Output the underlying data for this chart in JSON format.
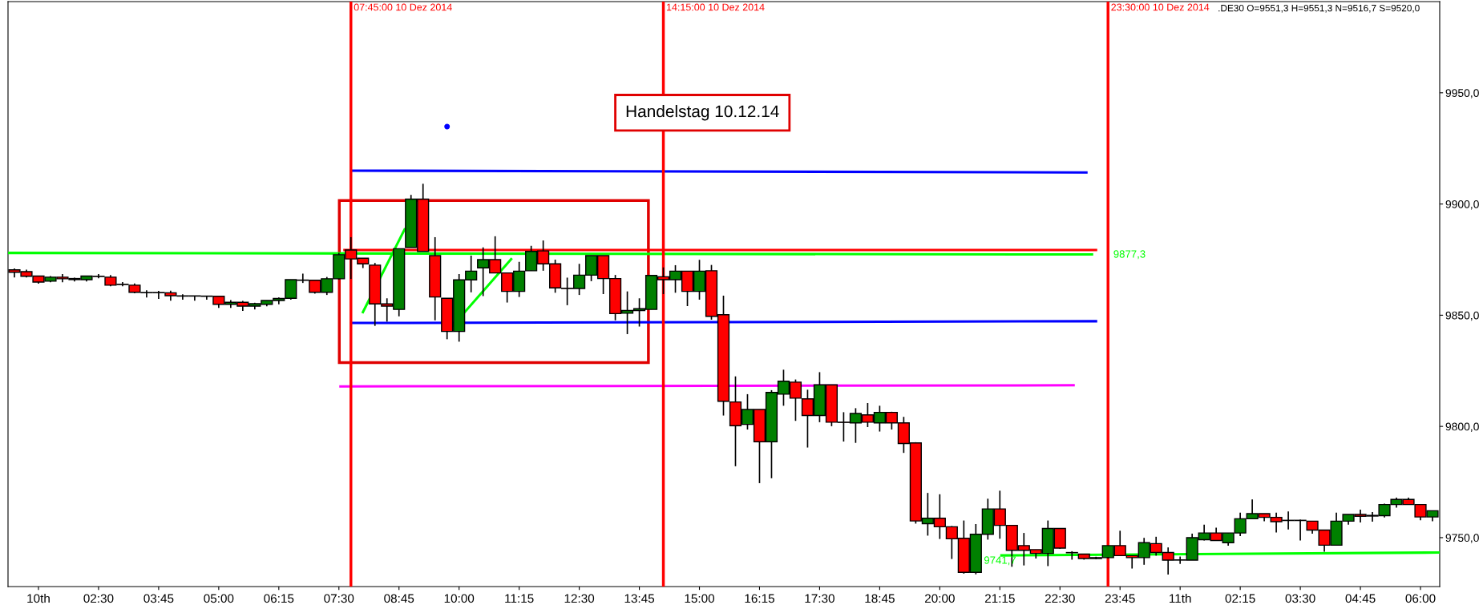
{
  "chart_data": {
    "type": "candlestick",
    "x": [
      "2014-12-10T00:45",
      "2014-12-10T01:00",
      "2014-12-10T01:15",
      "2014-12-10T01:30",
      "2014-12-10T01:45",
      "2014-12-10T02:00",
      "2014-12-10T02:15",
      "2014-12-10T02:30",
      "2014-12-10T02:45",
      "2014-12-10T03:00",
      "2014-12-10T03:15",
      "2014-12-10T03:30",
      "2014-12-10T03:45",
      "2014-12-10T04:00",
      "2014-12-10T04:15",
      "2014-12-10T04:30",
      "2014-12-10T04:45",
      "2014-12-10T05:00",
      "2014-12-10T05:15",
      "2014-12-10T05:30",
      "2014-12-10T05:45",
      "2014-12-10T06:00",
      "2014-12-10T06:15",
      "2014-12-10T06:30",
      "2014-12-10T06:45",
      "2014-12-10T07:00",
      "2014-12-10T07:15",
      "2014-12-10T07:30",
      "2014-12-10T07:45",
      "2014-12-10T08:00",
      "2014-12-10T08:15",
      "2014-12-10T08:30",
      "2014-12-10T08:45",
      "2014-12-10T09:00",
      "2014-12-10T09:15",
      "2014-12-10T09:30",
      "2014-12-10T09:45",
      "2014-12-10T10:00",
      "2014-12-10T10:15",
      "2014-12-10T10:30",
      "2014-12-10T10:45",
      "2014-12-10T11:00",
      "2014-12-10T11:15",
      "2014-12-10T11:30",
      "2014-12-10T11:45",
      "2014-12-10T12:00",
      "2014-12-10T12:15",
      "2014-12-10T12:30",
      "2014-12-10T12:45",
      "2014-12-10T13:00",
      "2014-12-10T13:15",
      "2014-12-10T13:30",
      "2014-12-10T13:45",
      "2014-12-10T14:00",
      "2014-12-10T14:15",
      "2014-12-10T14:30",
      "2014-12-10T14:45",
      "2014-12-10T15:00",
      "2014-12-10T15:15",
      "2014-12-10T15:30",
      "2014-12-10T15:45",
      "2014-12-10T16:00",
      "2014-12-10T16:15",
      "2014-12-10T16:30",
      "2014-12-10T16:45",
      "2014-12-10T17:00",
      "2014-12-10T17:15",
      "2014-12-10T17:30",
      "2014-12-10T17:45",
      "2014-12-10T18:00",
      "2014-12-10T18:15",
      "2014-12-10T18:30",
      "2014-12-10T18:45",
      "2014-12-10T19:00",
      "2014-12-10T19:15",
      "2014-12-10T19:30",
      "2014-12-10T19:45",
      "2014-12-10T20:00",
      "2014-12-10T20:15",
      "2014-12-10T20:30",
      "2014-12-10T20:45",
      "2014-12-10T21:00",
      "2014-12-10T21:15",
      "2014-12-10T21:30",
      "2014-12-10T21:45",
      "2014-12-10T22:00",
      "2014-12-10T22:15",
      "2014-12-10T22:30",
      "2014-12-10T22:45",
      "2014-12-10T23:00",
      "2014-12-10T23:15",
      "2014-12-10T23:30",
      "2014-12-10T23:45",
      "2014-12-11T00:00",
      "2014-12-11T00:15",
      "2014-12-11T00:30",
      "2014-12-11T00:45",
      "2014-12-11T01:00",
      "2014-12-11T01:15",
      "2014-12-11T01:30",
      "2014-12-11T01:45",
      "2014-12-11T02:00",
      "2014-12-11T02:15",
      "2014-12-11T02:30",
      "2014-12-11T02:45",
      "2014-12-11T03:00",
      "2014-12-11T03:15",
      "2014-12-11T03:30",
      "2014-12-11T03:45",
      "2014-12-11T04:00",
      "2014-12-11T04:15",
      "2014-12-11T04:30",
      "2014-12-11T04:45",
      "2014-12-11T05:00",
      "2014-12-11T05:15",
      "2014-12-11T05:30",
      "2014-12-11T05:45",
      "2014-12-11T06:00",
      "2014-12-11T06:15"
    ],
    "ohlc": [
      [
        9870.4,
        9871.0,
        9867.0,
        9869.3
      ],
      [
        9869.6,
        9870.5,
        9867.0,
        9867.5
      ],
      [
        9867.6,
        9867.6,
        9864.2,
        9864.9
      ],
      [
        9865.3,
        9867.6,
        9864.8,
        9867.1
      ],
      [
        9867.1,
        9868.5,
        9864.8,
        9866.4
      ],
      [
        9866.5,
        9866.9,
        9865.2,
        9866.0
      ],
      [
        9866.0,
        9867.6,
        9865.2,
        9867.6
      ],
      [
        9867.5,
        9868.5,
        9866.6,
        9867.4
      ],
      [
        9867.1,
        9868.1,
        9863.0,
        9863.5
      ],
      [
        9863.9,
        9864.9,
        9863.0,
        9863.8
      ],
      [
        9863.5,
        9864.3,
        9859.9,
        9860.3
      ],
      [
        9860.2,
        9861.2,
        9858.0,
        9860.1
      ],
      [
        9860.2,
        9860.9,
        9857.3,
        9860.1
      ],
      [
        9860.1,
        9861.0,
        9856.5,
        9858.8
      ],
      [
        9858.7,
        9859.4,
        9857.0,
        9858.6
      ],
      [
        9858.7,
        9858.8,
        9856.5,
        9858.6
      ],
      [
        9858.6,
        9858.8,
        9857.0,
        9858.5
      ],
      [
        9858.5,
        9858.5,
        9853.3,
        9854.9
      ],
      [
        9854.9,
        9856.8,
        9853.3,
        9855.8
      ],
      [
        9855.8,
        9856.4,
        9851.9,
        9854.1
      ],
      [
        9854.1,
        9855.6,
        9852.6,
        9855.2
      ],
      [
        9854.9,
        9856.6,
        9854.0,
        9856.6
      ],
      [
        9856.6,
        9858.0,
        9854.9,
        9857.5
      ],
      [
        9857.6,
        9866.0,
        9857.0,
        9866.0
      ],
      [
        9865.8,
        9868.7,
        9864.5,
        9865.7
      ],
      [
        9865.7,
        9865.7,
        9859.7,
        9860.3
      ],
      [
        9860.3,
        9867.2,
        9859.1,
        9866.4
      ],
      [
        9866.4,
        9878.0,
        9866.0,
        9877.2
      ],
      [
        9879.3,
        9885.1,
        9866.3,
        9875.3
      ],
      [
        9875.6,
        9875.6,
        9871.2,
        9873.1
      ],
      [
        9872.5,
        9873.5,
        9845.2,
        9855.1
      ],
      [
        9855.1,
        9857.6,
        9847.1,
        9854.1
      ],
      [
        9852.6,
        9879.9,
        9849.5,
        9879.9
      ],
      [
        9880.5,
        9904.1,
        9880.5,
        9902.2
      ],
      [
        9902.2,
        9909.1,
        9878.7,
        9878.7
      ],
      [
        9876.8,
        9885.1,
        9847.7,
        9858.2
      ],
      [
        9857.6,
        9857.6,
        9839.2,
        9842.7
      ],
      [
        9842.7,
        9868.5,
        9838.1,
        9865.9
      ],
      [
        9865.9,
        9876.8,
        9860.3,
        9869.8
      ],
      [
        9871.3,
        9880.5,
        9858.6,
        9875.0
      ],
      [
        9875.0,
        9885.5,
        9869.0,
        9869.0
      ],
      [
        9869.0,
        9869.0,
        9855.7,
        9860.7
      ],
      [
        9860.7,
        9874.0,
        9858.2,
        9869.8
      ],
      [
        9870.0,
        9881.2,
        9870.0,
        9878.7
      ],
      [
        9878.9,
        9883.6,
        9870.0,
        9873.1
      ],
      [
        9873.1,
        9875.0,
        9860.1,
        9862.3
      ],
      [
        9862.1,
        9866.9,
        9854.5,
        9862.0
      ],
      [
        9862.0,
        9873.1,
        9859.1,
        9868.0
      ],
      [
        9868.0,
        9876.8,
        9865.3,
        9876.8
      ],
      [
        9876.8,
        9876.8,
        9859.5,
        9866.5
      ],
      [
        9866.5,
        9868.1,
        9847.7,
        9850.7
      ],
      [
        9850.9,
        9860.7,
        9841.5,
        9852.1
      ],
      [
        9852.1,
        9857.6,
        9844.9,
        9852.9
      ],
      [
        9852.6,
        9867.9,
        9852.6,
        9867.9
      ],
      [
        9867.3,
        9871.5,
        9859.5,
        9866.0
      ],
      [
        9866.0,
        9872.5,
        9860.1,
        9869.8
      ],
      [
        9869.8,
        9869.8,
        9854.1,
        9860.7
      ],
      [
        9860.7,
        9874.9,
        9857.0,
        9869.8
      ],
      [
        9870.0,
        9872.6,
        9848.0,
        9849.5
      ],
      [
        9850.2,
        9858.8,
        9804.9,
        9811.3
      ],
      [
        9811.0,
        9822.5,
        9782.1,
        9800.3
      ],
      [
        9800.9,
        9814.5,
        9798.6,
        9807.6
      ],
      [
        9807.6,
        9807.6,
        9774.5,
        9793.1
      ],
      [
        9793.1,
        9816.3,
        9776.7,
        9815.3
      ],
      [
        9814.5,
        9825.5,
        9809.3,
        9820.3
      ],
      [
        9819.9,
        9821.1,
        9802.5,
        9812.7
      ],
      [
        9812.4,
        9816.5,
        9790.5,
        9804.9
      ],
      [
        9804.9,
        9824.4,
        9801.9,
        9818.7
      ],
      [
        9818.7,
        9818.7,
        9800.1,
        9801.9
      ],
      [
        9801.9,
        9806.4,
        9793.2,
        9801.8
      ],
      [
        9801.6,
        9808.2,
        9792.6,
        9805.8
      ],
      [
        9805.2,
        9810.5,
        9799.7,
        9801.9
      ],
      [
        9801.6,
        9809.3,
        9797.7,
        9806.3
      ],
      [
        9806.3,
        9806.6,
        9798.6,
        9801.6
      ],
      [
        9801.6,
        9804.3,
        9788.1,
        9792.3
      ],
      [
        9792.6,
        9792.9,
        9756.3,
        9757.5
      ],
      [
        9756.3,
        9770.1,
        9750.9,
        9758.7
      ],
      [
        9758.7,
        9769.5,
        9749.4,
        9754.9
      ],
      [
        9754.9,
        9755.2,
        9740.4,
        9749.5
      ],
      [
        9749.7,
        9757.7,
        9733.8,
        9734.4
      ],
      [
        9734.4,
        9756.1,
        9733.5,
        9751.5
      ],
      [
        9751.5,
        9767.5,
        9749.1,
        9762.9
      ],
      [
        9762.9,
        9771.1,
        9749.5,
        9755.5
      ],
      [
        9755.5,
        9755.5,
        9736.9,
        9744.3
      ],
      [
        9746.4,
        9752.1,
        9737.5,
        9744.3
      ],
      [
        9744.6,
        9744.6,
        9740.6,
        9742.9
      ],
      [
        9742.9,
        9757.7,
        9737.2,
        9754.1
      ],
      [
        9754.1,
        9754.1,
        9745.0,
        9745.3
      ],
      [
        9743.3,
        9743.9,
        9740.1,
        9743.2
      ],
      [
        9742.6,
        9742.6,
        9740.1,
        9740.6
      ],
      [
        9741.0,
        9741.4,
        9740.3,
        9740.6
      ],
      [
        9741.0,
        9746.4,
        9740.6,
        9746.4
      ],
      [
        9746.4,
        9753.1,
        9741.9,
        9741.9
      ],
      [
        9741.9,
        9741.9,
        9736.1,
        9741.0
      ],
      [
        9741.0,
        9749.9,
        9737.8,
        9747.7
      ],
      [
        9747.3,
        9750.4,
        9741.9,
        9743.3
      ],
      [
        9743.3,
        9745.6,
        9733.4,
        9739.9
      ],
      [
        9740.0,
        9741.5,
        9738.2,
        9739.9
      ],
      [
        9739.9,
        9751.8,
        9739.9,
        9750.0
      ],
      [
        9749.1,
        9755.8,
        9748.7,
        9752.1
      ],
      [
        9752.1,
        9754.5,
        9748.7,
        9748.7
      ],
      [
        9747.7,
        9752.1,
        9746.4,
        9752.1
      ],
      [
        9752.1,
        9761.2,
        9750.7,
        9758.5
      ],
      [
        9758.5,
        9767.2,
        9758.5,
        9760.8
      ],
      [
        9760.8,
        9760.8,
        9757.4,
        9759.1
      ],
      [
        9759.1,
        9761.2,
        9752.3,
        9757.2
      ],
      [
        9757.8,
        9761.8,
        9753.7,
        9757.7
      ],
      [
        9757.8,
        9758.1,
        9748.7,
        9757.7
      ],
      [
        9757.4,
        9757.4,
        9751.8,
        9753.4
      ],
      [
        9753.4,
        9753.4,
        9743.7,
        9746.6
      ],
      [
        9746.6,
        9761.2,
        9746.6,
        9757.4
      ],
      [
        9757.4,
        9760.4,
        9755.8,
        9760.4
      ],
      [
        9760.4,
        9762.6,
        9756.8,
        9759.6
      ],
      [
        9759.7,
        9761.5,
        9757.2,
        9760.0
      ],
      [
        9759.9,
        9765.3,
        9759.1,
        9764.9
      ],
      [
        9764.9,
        9768.0,
        9763.5,
        9767.2
      ],
      [
        9767.2,
        9768.0,
        9764.9,
        9764.9
      ],
      [
        9764.9,
        9764.9,
        9757.8,
        9759.3
      ],
      [
        9759.3,
        9762.1,
        9757.4,
        9762.1
      ]
    ],
    "colors": [
      "#ff0000",
      "#ff0000",
      "#ff0000",
      "#008000",
      "#ff0000",
      "#ff0000",
      "#008000",
      "#ff0000",
      "#ff0000",
      "#ff0000",
      "#ff0000",
      "#ff0000",
      "#ff0000",
      "#ff0000",
      "#ff0000",
      "#ff0000",
      "#ff0000",
      "#ff0000",
      "#008000",
      "#ff0000",
      "#008000",
      "#008000",
      "#008000",
      "#008000",
      "#ff0000",
      "#ff0000",
      "#008000",
      "#008000",
      "#ff0000",
      "#ff0000",
      "#ff0000",
      "#ff0000",
      "#008000",
      "#008000",
      "#ff0000",
      "#ff0000",
      "#ff0000",
      "#008000",
      "#008000",
      "#008000",
      "#ff0000",
      "#ff0000",
      "#008000",
      "#008000",
      "#ff0000",
      "#ff0000",
      "#ff0000",
      "#008000",
      "#008000",
      "#ff0000",
      "#ff0000",
      "#008000",
      "#008000",
      "#008000",
      "#ff0000",
      "#008000",
      "#ff0000",
      "#008000",
      "#ff0000",
      "#ff0000",
      "#ff0000",
      "#008000",
      "#ff0000",
      "#008000",
      "#008000",
      "#ff0000",
      "#ff0000",
      "#008000",
      "#ff0000",
      "#ff0000",
      "#008000",
      "#ff0000",
      "#008000",
      "#ff0000",
      "#ff0000",
      "#ff0000",
      "#008000",
      "#ff0000",
      "#ff0000",
      "#ff0000",
      "#008000",
      "#008000",
      "#ff0000",
      "#ff0000",
      "#ff0000",
      "#ff0000",
      "#008000",
      "#ff0000",
      "#ff0000",
      "#ff0000",
      "#ff0000",
      "#008000",
      "#ff0000",
      "#ff0000",
      "#008000",
      "#ff0000",
      "#ff0000",
      "#ff0000",
      "#008000",
      "#008000",
      "#ff0000",
      "#008000",
      "#008000",
      "#008000",
      "#ff0000",
      "#ff0000",
      "#ff0000",
      "#ff0000",
      "#ff0000",
      "#ff0000",
      "#008000",
      "#008000",
      "#ff0000",
      "#008000",
      "#008000",
      "#008000",
      "#ff0000",
      "#ff0000",
      "#008000"
    ],
    "series": [
      {
        "type": "line",
        "color": "#00ff00",
        "x": [
          "2014-12-10T00:37",
          "2014-12-10T23:10"
        ],
        "values": [
          9878.0,
          9877.3
        ]
      },
      {
        "type": "line",
        "color": "#ff0000",
        "x": [
          "2014-12-10T07:37",
          "2014-12-10T23:15"
        ],
        "values": [
          9879.3,
          9879.3
        ]
      },
      {
        "type": "line",
        "color": "#0000ff",
        "x": [
          "2014-12-10T07:45",
          "2014-12-10T23:03"
        ],
        "values": [
          9915.0,
          9914.2
        ]
      },
      {
        "type": "line",
        "color": "#0000ff",
        "x": [
          "2014-12-10T07:45",
          "2014-12-10T23:15"
        ],
        "values": [
          9846.5,
          9847.3
        ]
      },
      {
        "type": "line",
        "color": "#ff00ff",
        "x": [
          "2014-12-10T07:32",
          "2014-12-10T22:47"
        ],
        "values": [
          9818.0,
          9818.5
        ]
      },
      {
        "type": "line",
        "color": "#00ff00",
        "x": [
          "2014-12-10T21:17",
          "2014-12-11T06:24"
        ],
        "values": [
          9742.0,
          9743.3
        ]
      },
      {
        "type": "line",
        "color": "#00ff00",
        "x": [
          "2014-12-10T08:00",
          "2014-12-10T08:52"
        ],
        "values": [
          9851.4,
          9888.6
        ]
      },
      {
        "type": "line",
        "color": "#00ff00",
        "x": [
          "2014-12-10T09:52",
          "2014-12-10T11:05"
        ],
        "values": [
          9845.2,
          9875.2
        ]
      },
      {
        "type": "scatter",
        "color": "#0000ff",
        "marker": "circle",
        "x": [
          "2014-12-10T09:45"
        ],
        "values": [
          9934.8
        ]
      }
    ],
    "ref_lines": [
      {
        "axis": "x",
        "value": "2014-12-10T07:45",
        "label": "07:45:00 10 Dez 2014",
        "color": "#ff0000"
      },
      {
        "axis": "x",
        "value": "2014-12-10T14:15",
        "label": "14:15:00 10 Dez 2014",
        "color": "#ff0000"
      },
      {
        "axis": "x",
        "value": "2014-12-10T23:30",
        "label": "23:30:00 10 Dez 2014",
        "color": "#ff0000"
      }
    ],
    "annotations": [
      "Handelstag 10.12.14",
      ".DE30 O=9551,3 H=9551,3 N=9516,7 S=9520,0",
      "9877,3",
      {
        "text": "9741,7",
        "x": "2014-12-10T20:55",
        "y": 9741.7
      }
    ],
    "xlim": [
      "2014-12-10T00:37",
      "2014-12-11T06:24"
    ],
    "xticks": [
      {
        "value": "2014-12-10T01:15",
        "label": "10th"
      },
      {
        "value": "2014-12-10T02:30",
        "label": "02:30"
      },
      {
        "value": "2014-12-10T03:45",
        "label": "03:45"
      },
      {
        "value": "2014-12-10T05:00",
        "label": "05:00"
      },
      {
        "value": "2014-12-10T06:15",
        "label": "06:15"
      },
      {
        "value": "2014-12-10T07:30",
        "label": "07:30"
      },
      {
        "value": "2014-12-10T08:45",
        "label": "08:45"
      },
      {
        "value": "2014-12-10T10:00",
        "label": "10:00"
      },
      {
        "value": "2014-12-10T11:15",
        "label": "11:15"
      },
      {
        "value": "2014-12-10T12:30",
        "label": "12:30"
      },
      {
        "value": "2014-12-10T13:45",
        "label": "13:45"
      },
      {
        "value": "2014-12-10T15:00",
        "label": "15:00"
      },
      {
        "value": "2014-12-10T16:15",
        "label": "16:15"
      },
      {
        "value": "2014-12-10T17:30",
        "label": "17:30"
      },
      {
        "value": "2014-12-10T18:45",
        "label": "18:45"
      },
      {
        "value": "2014-12-10T20:00",
        "label": "20:00"
      },
      {
        "value": "2014-12-10T21:15",
        "label": "21:15"
      },
      {
        "value": "2014-12-10T22:30",
        "label": "22:30"
      },
      {
        "value": "2014-12-10T23:45",
        "label": "23:45"
      },
      {
        "value": "2014-12-11T01:00",
        "label": "11th"
      },
      {
        "value": "2014-12-11T02:15",
        "label": "02:15"
      },
      {
        "value": "2014-12-11T03:30",
        "label": "03:30"
      },
      {
        "value": "2014-12-11T04:45",
        "label": "04:45"
      },
      {
        "value": "2014-12-11T06:00",
        "label": "06:00"
      }
    ],
    "ylim": [
      9728,
      9991
    ],
    "yticks": [
      {
        "value": 9750,
        "label": "9750,0"
      },
      {
        "value": 9800,
        "label": "9800,0"
      },
      {
        "value": 9850,
        "label": "9850,0"
      },
      {
        "value": 9900,
        "label": "9900,0"
      },
      {
        "value": 9950,
        "label": "9950,0"
      }
    ],
    "grid": false,
    "legend": false
  }
}
